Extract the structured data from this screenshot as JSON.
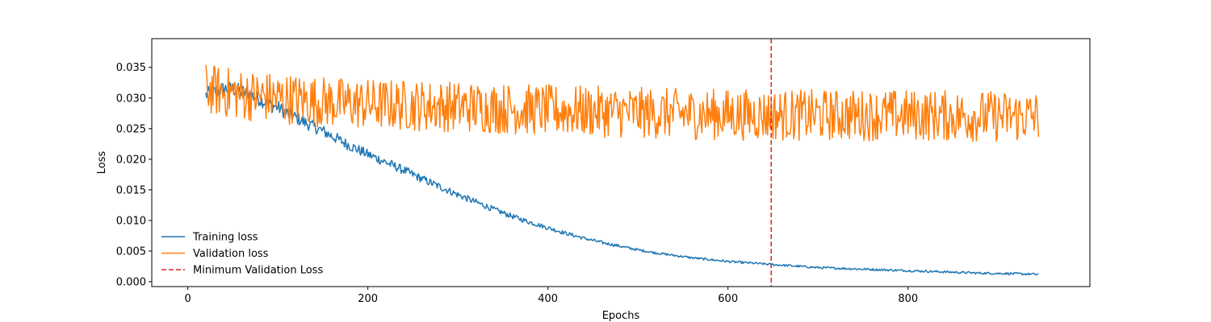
{
  "chart_data": {
    "type": "line",
    "title": "",
    "xlabel": "Epochs",
    "ylabel": "Loss",
    "xlim": [
      -40,
      1002
    ],
    "ylim": [
      -0.0008,
      0.0397
    ],
    "xticks": [
      0,
      200,
      400,
      600,
      800
    ],
    "xtick_labels": [
      "0",
      "200",
      "400",
      "600",
      "800"
    ],
    "yticks": [
      0.0,
      0.005,
      0.01,
      0.015,
      0.02,
      0.025,
      0.03,
      0.035
    ],
    "ytick_labels": [
      "0.000",
      "0.005",
      "0.010",
      "0.015",
      "0.020",
      "0.025",
      "0.030",
      "0.035"
    ],
    "grid": false,
    "legend_position": "lower-left",
    "series": [
      {
        "name": "Training loss",
        "color": "#1f77b4",
        "style": "solid",
        "x": [
          20,
          30,
          40,
          50,
          60,
          70,
          80,
          90,
          100,
          110,
          120,
          130,
          140,
          150,
          160,
          170,
          180,
          190,
          200,
          220,
          240,
          260,
          280,
          300,
          320,
          340,
          360,
          380,
          400,
          420,
          440,
          460,
          480,
          500,
          520,
          540,
          560,
          580,
          600,
          620,
          640,
          648,
          660,
          680,
          700,
          720,
          740,
          760,
          780,
          800,
          820,
          840,
          860,
          880,
          900,
          920,
          945
        ],
        "y": [
          0.0305,
          0.031,
          0.0315,
          0.0315,
          0.031,
          0.0305,
          0.0298,
          0.029,
          0.0285,
          0.0275,
          0.0268,
          0.026,
          0.0253,
          0.0246,
          0.0238,
          0.023,
          0.0222,
          0.0215,
          0.0208,
          0.0195,
          0.0182,
          0.0168,
          0.0155,
          0.0142,
          0.013,
          0.0118,
          0.0107,
          0.0097,
          0.0088,
          0.0079,
          0.0071,
          0.0064,
          0.0058,
          0.0052,
          0.0047,
          0.0043,
          0.0039,
          0.0036,
          0.0033,
          0.0031,
          0.0029,
          0.0028,
          0.0027,
          0.0025,
          0.0023,
          0.0022,
          0.0021,
          0.002,
          0.0019,
          0.0018,
          0.0017,
          0.0016,
          0.0015,
          0.0014,
          0.00135,
          0.0013,
          0.0012
        ]
      },
      {
        "name": "Validation loss",
        "color": "#ff7f0e",
        "style": "solid",
        "x": [
          20,
          40,
          60,
          80,
          100,
          120,
          140,
          160,
          180,
          200,
          250,
          300,
          350,
          400,
          450,
          500,
          550,
          600,
          648,
          700,
          750,
          800,
          850,
          900,
          945
        ],
        "y": [
          0.0315,
          0.031,
          0.0305,
          0.0303,
          0.03,
          0.0298,
          0.0295,
          0.0293,
          0.0291,
          0.029,
          0.0288,
          0.0286,
          0.0283,
          0.028,
          0.0278,
          0.0276,
          0.0274,
          0.0273,
          0.0272,
          0.0272,
          0.0272,
          0.0272,
          0.0271,
          0.027,
          0.027
        ]
      }
    ],
    "annotations": [
      {
        "name": "Minimum Validation Loss",
        "type": "vline",
        "x": 648,
        "color": "#d62728",
        "style": "dashed"
      }
    ]
  }
}
